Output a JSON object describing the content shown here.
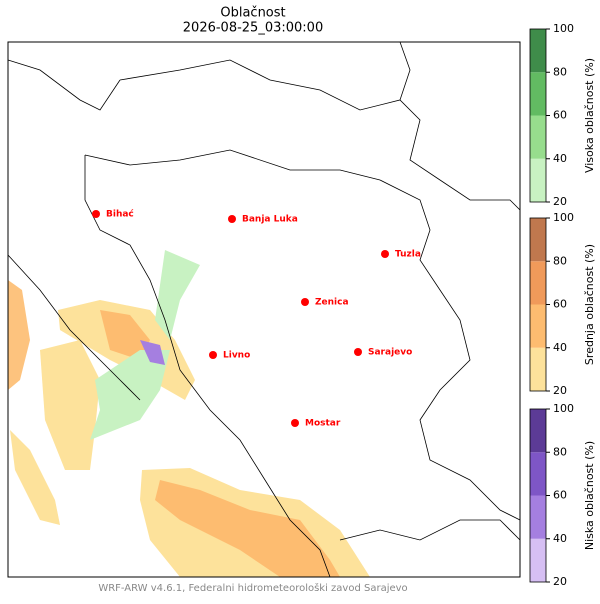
{
  "title": "Oblačnost",
  "subtitle": "2026-08-25_03:00:00",
  "cities": [
    "Bihać",
    "Banja Luka",
    "Tuzla",
    "Zenica",
    "Livno",
    "Sarajevo",
    "Mostar"
  ],
  "city_color": "#ff0000",
  "colorbars": [
    {
      "label": "Visoka oblačnost (%)",
      "ticks": [
        20,
        40,
        60,
        80,
        100
      ],
      "colors": [
        "#c8f2c2",
        "#97dd8d",
        "#62bb62",
        "#3f8c4a"
      ]
    },
    {
      "label": "Srednja oblačnost (%)",
      "ticks": [
        20,
        40,
        60,
        80,
        100
      ],
      "colors": [
        "#fde29b",
        "#fdbc70",
        "#f09a5a",
        "#c0784e"
      ]
    },
    {
      "label": "Niska oblačnost (%)",
      "ticks": [
        20,
        40,
        60,
        80,
        100
      ],
      "colors": [
        "#d6bff3",
        "#a57fe0",
        "#7e56c6",
        "#5c3b96"
      ]
    }
  ],
  "footer": "WRF-ARW v4.6.1, Federalni hidrometeorološki zavod Sarajevo"
}
